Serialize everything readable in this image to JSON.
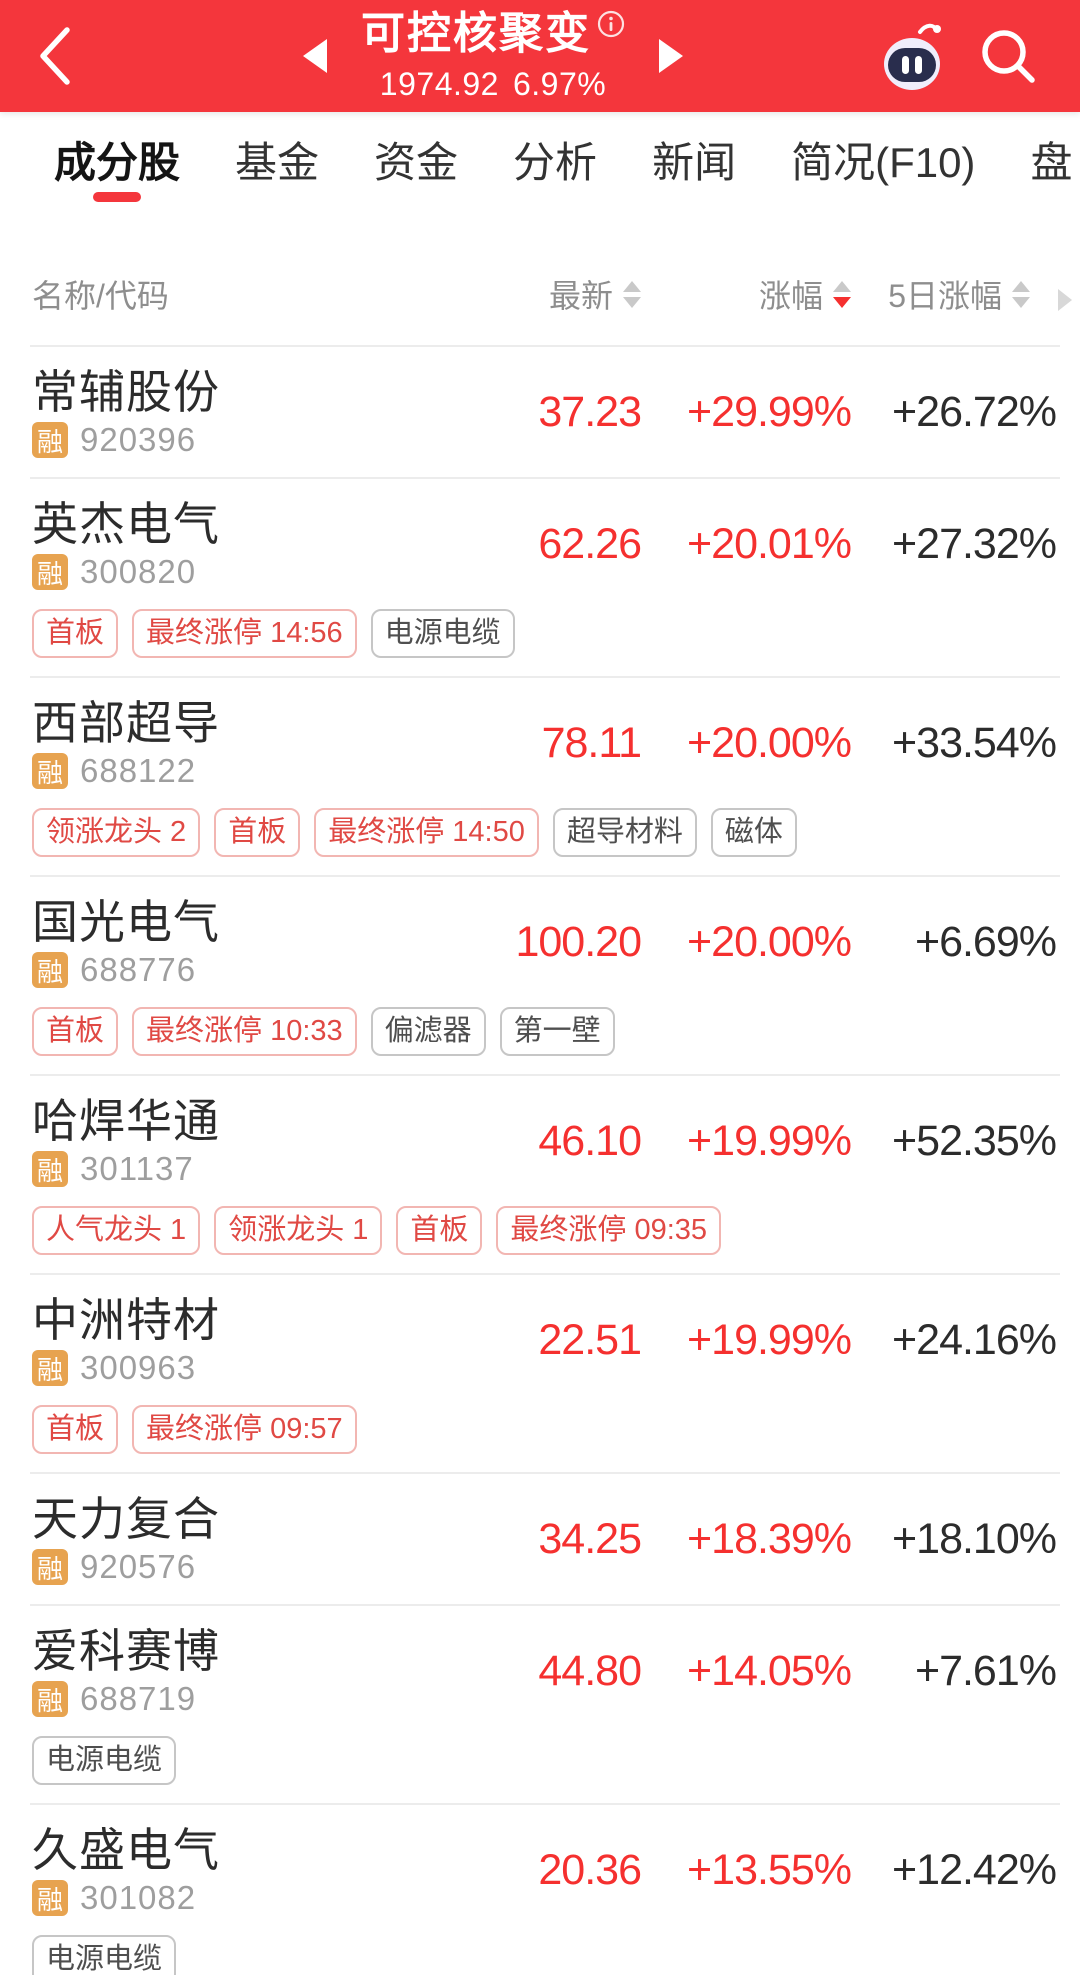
{
  "header": {
    "title": "可控核聚变",
    "index_value": "1974.92",
    "index_change_pct": "6.97%",
    "icons": {
      "back": "chevron-left",
      "prev_sector": "triangle-left",
      "next_sector": "triangle-right",
      "info": "circled-i",
      "assistant": "robot-face",
      "search": "magnifier"
    },
    "colors": {
      "header_bg": "#F4363C",
      "up_red": "#F5302F",
      "badge_orange": "#E7A350"
    }
  },
  "tabs": [
    {
      "label": "成分股",
      "active": true
    },
    {
      "label": "基金",
      "active": false
    },
    {
      "label": "资金",
      "active": false
    },
    {
      "label": "分析",
      "active": false
    },
    {
      "label": "新闻",
      "active": false
    },
    {
      "label": "简况(F10)",
      "active": false
    },
    {
      "label": "盘",
      "active": false
    }
  ],
  "table": {
    "name_col_label": "名称/代码",
    "columns": [
      {
        "label": "最新",
        "sort": "none"
      },
      {
        "label": "涨幅",
        "sort": "desc"
      },
      {
        "label": "5日涨幅",
        "sort": "none"
      }
    ],
    "rows": [
      {
        "name": "常辅股份",
        "badge": "融",
        "code": "920396",
        "latest": "37.23",
        "change": "+29.99%",
        "change_5d": "+26.72%",
        "tags": []
      },
      {
        "name": "英杰电气",
        "badge": "融",
        "code": "300820",
        "latest": "62.26",
        "change": "+20.01%",
        "change_5d": "+27.32%",
        "tags": [
          {
            "label": "首板",
            "type": "red"
          },
          {
            "label": "最终涨停 14:56",
            "type": "red"
          },
          {
            "label": "电源电缆",
            "type": "gray"
          }
        ]
      },
      {
        "name": "西部超导",
        "badge": "融",
        "code": "688122",
        "latest": "78.11",
        "change": "+20.00%",
        "change_5d": "+33.54%",
        "tags": [
          {
            "label": "领涨龙头 2",
            "type": "red"
          },
          {
            "label": "首板",
            "type": "red"
          },
          {
            "label": "最终涨停 14:50",
            "type": "red"
          },
          {
            "label": "超导材料",
            "type": "gray"
          },
          {
            "label": "磁体",
            "type": "gray"
          }
        ]
      },
      {
        "name": "国光电气",
        "badge": "融",
        "code": "688776",
        "latest": "100.20",
        "change": "+20.00%",
        "change_5d": "+6.69%",
        "tags": [
          {
            "label": "首板",
            "type": "red"
          },
          {
            "label": "最终涨停 10:33",
            "type": "red"
          },
          {
            "label": "偏滤器",
            "type": "gray"
          },
          {
            "label": "第一壁",
            "type": "gray"
          }
        ]
      },
      {
        "name": "哈焊华通",
        "badge": "融",
        "code": "301137",
        "latest": "46.10",
        "change": "+19.99%",
        "change_5d": "+52.35%",
        "tags": [
          {
            "label": "人气龙头 1",
            "type": "red"
          },
          {
            "label": "领涨龙头 1",
            "type": "red"
          },
          {
            "label": "首板",
            "type": "red"
          },
          {
            "label": "最终涨停 09:35",
            "type": "red"
          }
        ]
      },
      {
        "name": "中洲特材",
        "badge": "融",
        "code": "300963",
        "latest": "22.51",
        "change": "+19.99%",
        "change_5d": "+24.16%",
        "tags": [
          {
            "label": "首板",
            "type": "red"
          },
          {
            "label": "最终涨停 09:57",
            "type": "red"
          }
        ]
      },
      {
        "name": "天力复合",
        "badge": "融",
        "code": "920576",
        "latest": "34.25",
        "change": "+18.39%",
        "change_5d": "+18.10%",
        "tags": []
      },
      {
        "name": "爱科赛博",
        "badge": "融",
        "code": "688719",
        "latest": "44.80",
        "change": "+14.05%",
        "change_5d": "+7.61%",
        "tags": [
          {
            "label": "电源电缆",
            "type": "gray"
          }
        ]
      },
      {
        "name": "久盛电气",
        "badge": "融",
        "code": "301082",
        "latest": "20.36",
        "change": "+13.55%",
        "change_5d": "+12.42%",
        "tags": [
          {
            "label": "电源电缆",
            "type": "gray"
          }
        ]
      }
    ]
  }
}
